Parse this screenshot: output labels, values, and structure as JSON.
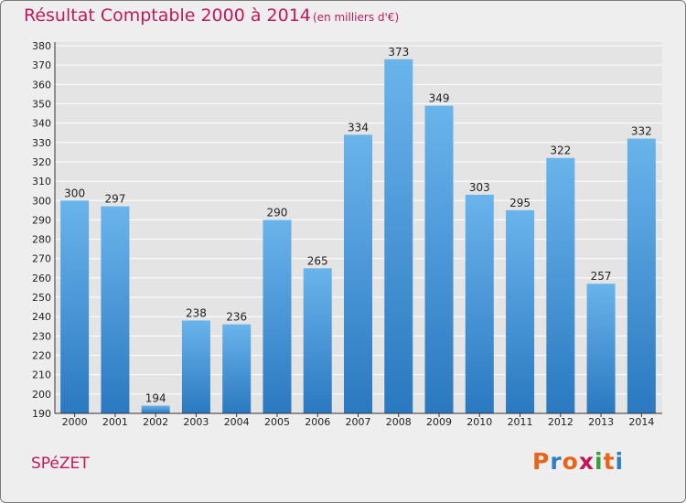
{
  "header": {
    "title": "Résultat Comptable 2000 à 2014",
    "subtitle": "(en milliers d'€)"
  },
  "footer": {
    "commune": "SPéZET",
    "logo_text": "Proxiti",
    "logo_colors": [
      "#e8641b",
      "#2e7fc1",
      "#e8641b",
      "#c2185b",
      "#3a9e3a",
      "#e8641b",
      "#2e7fc1"
    ]
  },
  "colors": {
    "bar_top": "#6ab4ec",
    "bar_bottom": "#2a78c0",
    "grid": "#ffffff",
    "plot_bg": "#e4e4e4",
    "accent": "#c2185b"
  },
  "chart_data": {
    "type": "bar",
    "title": "Résultat Comptable 2000 à 2014",
    "subtitle": "(en milliers d'€)",
    "xlabel": "",
    "ylabel": "",
    "categories": [
      "2000",
      "2001",
      "2002",
      "2003",
      "2004",
      "2005",
      "2006",
      "2007",
      "2008",
      "2009",
      "2010",
      "2011",
      "2012",
      "2013",
      "2014"
    ],
    "values": [
      300,
      297,
      194,
      238,
      236,
      290,
      265,
      334,
      373,
      349,
      303,
      295,
      322,
      257,
      332
    ],
    "ylim": [
      190,
      380
    ],
    "yticks": [
      190,
      200,
      210,
      220,
      230,
      240,
      250,
      260,
      270,
      280,
      290,
      300,
      310,
      320,
      330,
      340,
      350,
      360,
      370,
      380
    ],
    "grid": true,
    "legend": "none"
  }
}
